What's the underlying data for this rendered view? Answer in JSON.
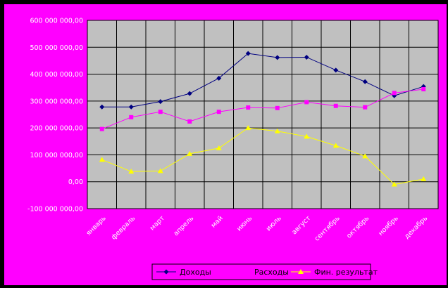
{
  "colors": {
    "chart_background": "#ff00ff",
    "plot_background": "#c0c0c0",
    "gridline": "#000000",
    "axis_text": "#ffffff",
    "legend_background": "#ff00ff"
  },
  "chart_data": {
    "type": "line",
    "title": "",
    "xlabel": "",
    "ylabel": "",
    "categories": [
      "январь",
      "февраль",
      "март",
      "апрель",
      "май",
      "июнь",
      "июль",
      "август",
      "сентябрь",
      "октябрь",
      "ноябрь",
      "декабрь"
    ],
    "y_ticks": [
      "-100 000 000,00",
      "0,00",
      "100 000 000,00",
      "200 000 000,00",
      "300 000 000,00",
      "400 000 000,00",
      "500 000 000,00",
      "600 000 000,00"
    ],
    "ylim": [
      -100000000,
      600000000
    ],
    "grid": true,
    "legend_position": "bottom",
    "series": [
      {
        "name": "Доходы",
        "color": "#000080",
        "marker": "diamond",
        "values": [
          278000000,
          278000000,
          298000000,
          328000000,
          385000000,
          477000000,
          462000000,
          463000000,
          415000000,
          372000000,
          320000000,
          354000000
        ]
      },
      {
        "name": "Расходы",
        "color": "#ff00ff",
        "marker": "square",
        "values": [
          196000000,
          240000000,
          260000000,
          224000000,
          260000000,
          276000000,
          274000000,
          296000000,
          282000000,
          277000000,
          330000000,
          344000000
        ]
      },
      {
        "name": "Фин. результат",
        "color": "#ffff00",
        "marker": "triangle",
        "values": [
          82000000,
          38000000,
          40000000,
          104000000,
          125000000,
          200000000,
          188000000,
          168000000,
          134000000,
          95000000,
          -10000000,
          10000000
        ]
      }
    ]
  }
}
